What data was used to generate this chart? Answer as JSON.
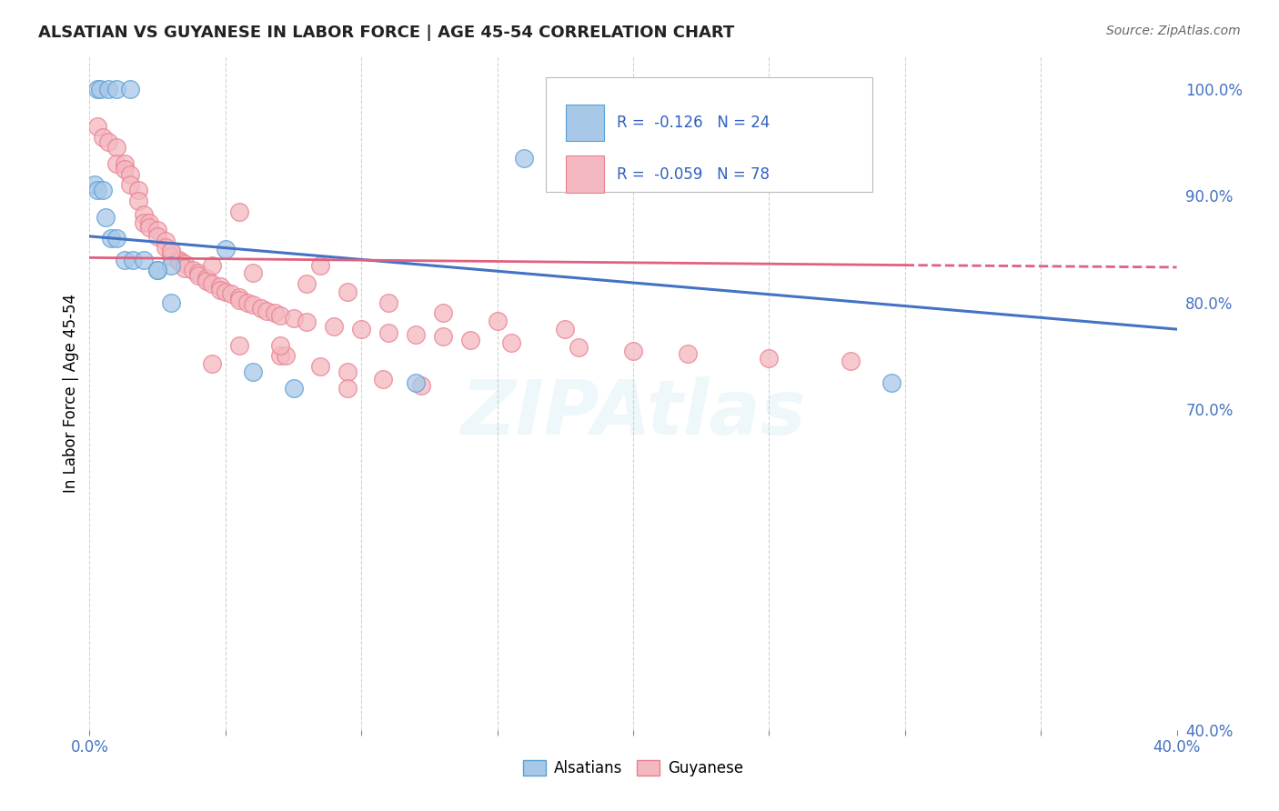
{
  "title": "ALSATIAN VS GUYANESE IN LABOR FORCE | AGE 45-54 CORRELATION CHART",
  "source": "Source: ZipAtlas.com",
  "ylabel": "In Labor Force | Age 45-54",
  "xlim": [
    0.0,
    0.4
  ],
  "ylim": [
    0.4,
    1.03
  ],
  "alsatian_color": "#a8c8e8",
  "guyanese_color": "#f4b8c0",
  "alsatian_edge": "#5a9fd4",
  "guyanese_edge": "#e88090",
  "trendline_blue": "#4472c4",
  "trendline_pink": "#e06080",
  "watermark": "ZIPAtlas",
  "alsatian_x": [
    0.003,
    0.004,
    0.007,
    0.01,
    0.015,
    0.002,
    0.003,
    0.005,
    0.006,
    0.008,
    0.01,
    0.013,
    0.016,
    0.02,
    0.025,
    0.03,
    0.16,
    0.025,
    0.05,
    0.075,
    0.12,
    0.03,
    0.06,
    0.295
  ],
  "alsatian_y": [
    1.0,
    1.0,
    1.0,
    1.0,
    1.0,
    0.91,
    0.905,
    0.905,
    0.88,
    0.86,
    0.86,
    0.84,
    0.84,
    0.84,
    0.83,
    0.835,
    0.935,
    0.83,
    0.85,
    0.72,
    0.725,
    0.8,
    0.735,
    0.725
  ],
  "guyanese_x": [
    0.003,
    0.005,
    0.007,
    0.01,
    0.01,
    0.013,
    0.013,
    0.015,
    0.015,
    0.018,
    0.018,
    0.02,
    0.02,
    0.022,
    0.022,
    0.025,
    0.025,
    0.028,
    0.028,
    0.03,
    0.03,
    0.033,
    0.033,
    0.035,
    0.035,
    0.038,
    0.04,
    0.04,
    0.043,
    0.043,
    0.045,
    0.048,
    0.048,
    0.05,
    0.052,
    0.055,
    0.055,
    0.058,
    0.06,
    0.063,
    0.065,
    0.068,
    0.07,
    0.075,
    0.08,
    0.09,
    0.1,
    0.11,
    0.12,
    0.13,
    0.14,
    0.155,
    0.18,
    0.2,
    0.22,
    0.25,
    0.28,
    0.03,
    0.045,
    0.06,
    0.08,
    0.095,
    0.11,
    0.13,
    0.15,
    0.175,
    0.07,
    0.045,
    0.055,
    0.072,
    0.085,
    0.095,
    0.108,
    0.122,
    0.055,
    0.07,
    0.085,
    0.095
  ],
  "guyanese_y": [
    0.965,
    0.955,
    0.95,
    0.945,
    0.93,
    0.93,
    0.925,
    0.92,
    0.91,
    0.905,
    0.895,
    0.882,
    0.875,
    0.875,
    0.87,
    0.868,
    0.862,
    0.858,
    0.852,
    0.848,
    0.843,
    0.84,
    0.838,
    0.836,
    0.832,
    0.83,
    0.828,
    0.825,
    0.823,
    0.82,
    0.818,
    0.815,
    0.812,
    0.81,
    0.808,
    0.805,
    0.802,
    0.8,
    0.798,
    0.795,
    0.792,
    0.79,
    0.788,
    0.785,
    0.782,
    0.778,
    0.775,
    0.772,
    0.77,
    0.768,
    0.765,
    0.762,
    0.758,
    0.755,
    0.752,
    0.748,
    0.745,
    0.848,
    0.835,
    0.828,
    0.818,
    0.81,
    0.8,
    0.79,
    0.783,
    0.775,
    0.75,
    0.743,
    0.76,
    0.75,
    0.74,
    0.735,
    0.728,
    0.722,
    0.885,
    0.76,
    0.835,
    0.72
  ]
}
